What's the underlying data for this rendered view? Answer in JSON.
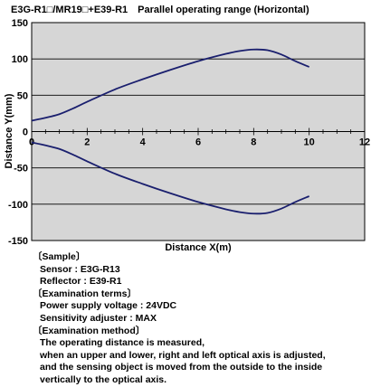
{
  "chart_data": {
    "type": "line",
    "title": "E3G-R1□/MR19□+E39-R1　Parallel operating range (Horizontal)",
    "xlabel": "Distance X(m)",
    "ylabel": "Distance Y(mm)",
    "xlim": [
      0,
      12
    ],
    "ylim": [
      -150,
      150
    ],
    "xticks": [
      0,
      2,
      4,
      6,
      8,
      10,
      12
    ],
    "yticks": [
      -150,
      -100,
      -50,
      0,
      50,
      100,
      150
    ],
    "grid": "horizontal",
    "series": [
      {
        "x": [
          0,
          0.5,
          1,
          1.5,
          2,
          3,
          4,
          5,
          6,
          7,
          7.5,
          8,
          8.5,
          9,
          9.5,
          10
        ],
        "values": [
          15,
          19,
          24,
          32,
          41,
          58,
          72,
          85,
          97,
          107,
          111,
          113,
          112,
          106,
          97,
          89
        ],
        "color": "#1a1f6e"
      },
      {
        "x": [
          0,
          0.5,
          1,
          1.5,
          2,
          3,
          4,
          5,
          6,
          7,
          7.5,
          8,
          8.5,
          9,
          9.5,
          10
        ],
        "values": [
          -15,
          -19,
          -24,
          -32,
          -41,
          -58,
          -72,
          -85,
          -97,
          -107,
          -111,
          -113,
          -112,
          -106,
          -97,
          -89
        ],
        "color": "#1a1f6e"
      }
    ]
  },
  "notes": {
    "sample_heading": "〔Sample〕",
    "sensor": "Sensor : E3G-R13",
    "reflector": "Reflector : E39-R1",
    "terms_heading": "〔Examination terms〕",
    "voltage": "Power supply voltage : 24VDC",
    "sensitivity": "Sensitivity adjuster : MAX",
    "method_heading": "〔Examination method〕",
    "method_lines": [
      "The operating distance is measured,",
      "when an upper and lower, right and left optical axis  is adjusted,",
      "and the sensing object is moved from the outside to the inside",
      "vertically to the optical axis."
    ]
  }
}
